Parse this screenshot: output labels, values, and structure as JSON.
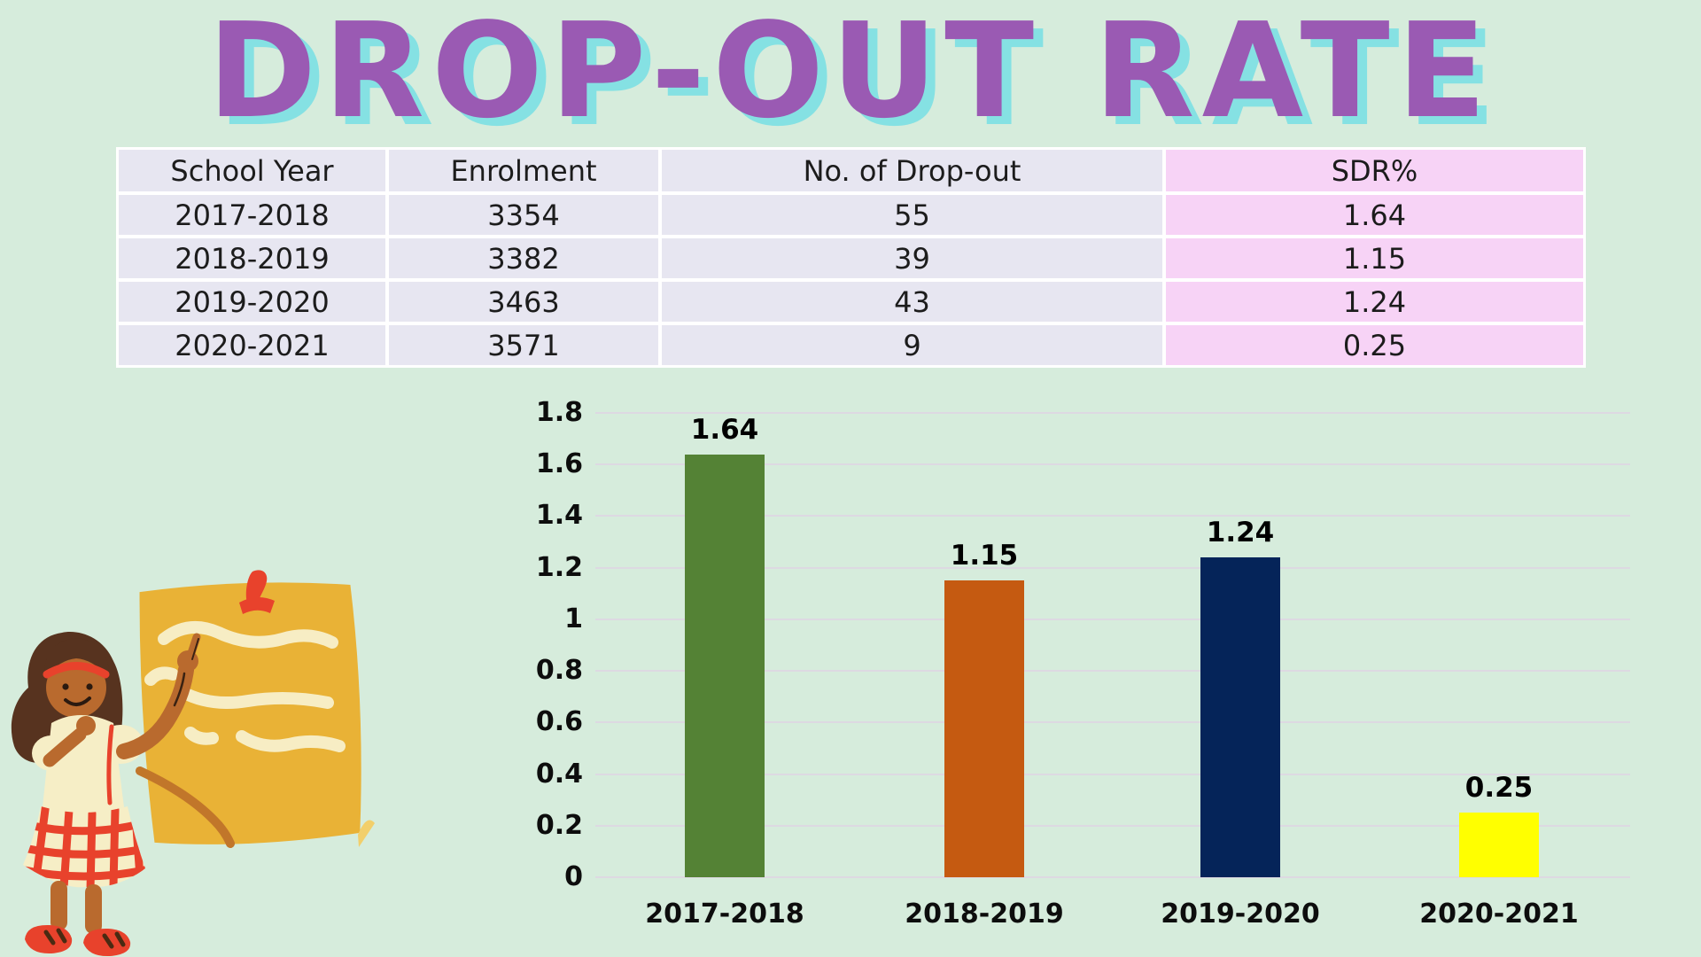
{
  "title": "DROP-OUT RATE",
  "table": {
    "headers": [
      "School Year",
      "Enrolment",
      "No. of Drop-out",
      "SDR%"
    ],
    "rows": [
      {
        "school_year": "2017-2018",
        "enrolment": "3354",
        "dropouts": "55",
        "sdr": "1.64"
      },
      {
        "school_year": "2018-2019",
        "enrolment": "3382",
        "dropouts": "39",
        "sdr": "1.15"
      },
      {
        "school_year": "2019-2020",
        "enrolment": "3463",
        "dropouts": "43",
        "sdr": "1.24"
      },
      {
        "school_year": "2020-2021",
        "enrolment": "3571",
        "dropouts": "9",
        "sdr": "0.25"
      }
    ]
  },
  "chart_data": {
    "type": "bar",
    "title": "",
    "xlabel": "",
    "ylabel": "",
    "categories": [
      "2017-2018",
      "2018-2019",
      "2019-2020",
      "2020-2021"
    ],
    "values": [
      1.64,
      1.15,
      1.24,
      0.25
    ],
    "bar_labels": [
      "1.64",
      "1.15",
      "1.24",
      "0.25"
    ],
    "colors": [
      "#548235",
      "#c55a11",
      "#052459",
      "#ffff00"
    ],
    "ylim": [
      0,
      1.8
    ],
    "y_ticks": [
      "1.8",
      "1.6",
      "1.4",
      "1.2",
      "1",
      "0.8",
      "0.6",
      "0.4",
      "0.2",
      "0"
    ],
    "grid": true,
    "legend_position": "none"
  },
  "illustration": {
    "note_color": "#e9b236",
    "pin_color": "#e8422c",
    "line_color": "#f7edc4",
    "fold_color": "#c1762a",
    "hair_color": "#57331f",
    "skin_color": "#b96a2e",
    "dress_color": "#f6eec6",
    "plaid_color": "#e8422c"
  },
  "colors": {
    "background": "#d6ecdc",
    "title_purple": "#9a5ab3",
    "title_shadow_cyan": "#85e1e3",
    "table_cell": "#e7e6f1",
    "table_sdr_column": "#f7d3f6",
    "gridline": "#ddd9e2"
  }
}
